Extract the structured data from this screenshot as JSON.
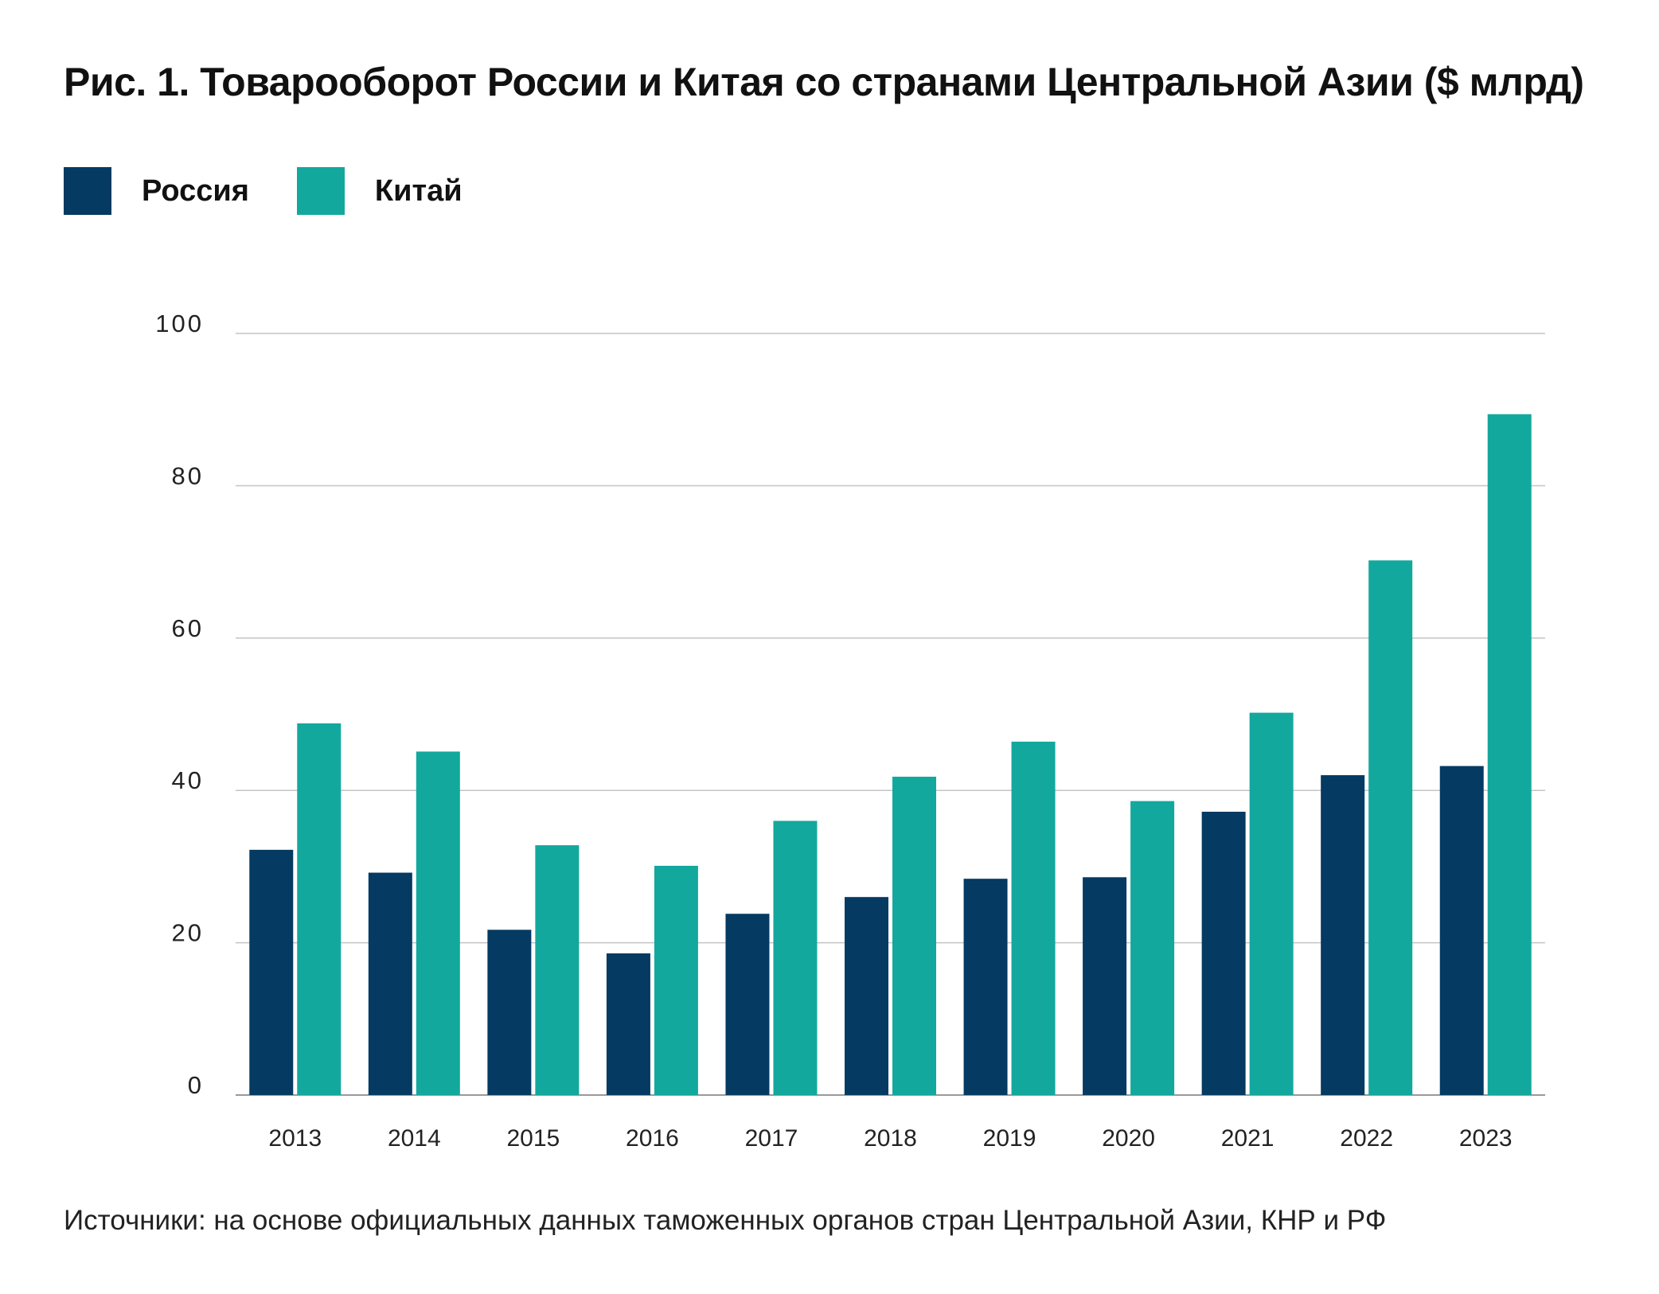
{
  "chart_data": {
    "type": "bar",
    "title": "Рис. 1. Товарооборот России и Китая со странами Центральной Азии ($ млрд)",
    "xlabel": "",
    "ylabel": "",
    "ylim": [
      0,
      100
    ],
    "yticks": [
      "0",
      "20",
      "40",
      "60",
      "80",
      "100"
    ],
    "ytick_values": [
      0,
      20,
      40,
      60,
      80,
      100
    ],
    "grid": true,
    "legend_position": "top-left",
    "categories": [
      "2013",
      "2014",
      "2015",
      "2016",
      "2017",
      "2018",
      "2019",
      "2020",
      "2021",
      "2022",
      "2023"
    ],
    "series": [
      {
        "name": "Россия",
        "color": "#053a62",
        "values": [
          32.2,
          29.2,
          21.7,
          18.6,
          23.8,
          26.0,
          28.4,
          28.6,
          37.2,
          42.0,
          43.2
        ]
      },
      {
        "name": "Китай",
        "color": "#13a89e",
        "values": [
          48.8,
          45.1,
          32.8,
          30.1,
          36.0,
          41.8,
          46.4,
          38.6,
          50.2,
          70.2,
          89.4
        ]
      }
    ],
    "source": "Источники: на основе официальных данных таможенных органов стран Центральной Азии, КНР и РФ"
  }
}
